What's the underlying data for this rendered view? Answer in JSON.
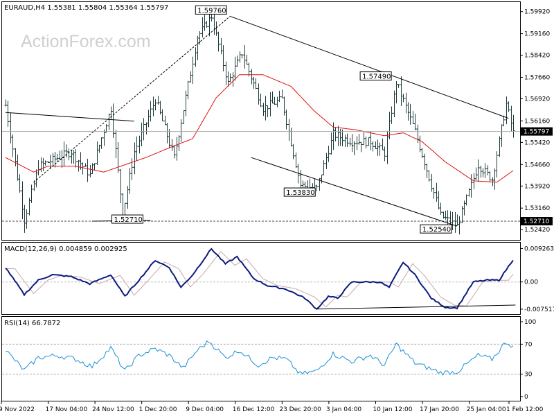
{
  "chart_data": {
    "type": "line",
    "symbol": "EURAUD",
    "timeframe": "H4",
    "ohlc": {
      "open": "1.55381",
      "high": "1.55804",
      "low": "1.55364",
      "close": "1.55797"
    },
    "x_ticks": [
      "9 Nov 2022",
      "17 Nov 04:00",
      "24 Nov 12:00",
      "1 Dec 20:00",
      "9 Dec 04:00",
      "16 Dec 12:00",
      "23 Dec 20:00",
      "3 Jan 04:00",
      "10 Jan 12:00",
      "17 Jan 20:00",
      "25 Jan 04:00",
      "1 Feb 12:00"
    ],
    "price_ticks": [
      "1.59920",
      "1.59160",
      "1.58420",
      "1.57660",
      "1.56920",
      "1.56160",
      "1.55420",
      "1.54660",
      "1.53920",
      "1.53160",
      "1.52420"
    ],
    "ylim": [
      1.5221,
      1.6008
    ],
    "current_price": "1.55797",
    "support_level": "1.52710",
    "price_labels": [
      "1.59760",
      "1.57490",
      "1.53830",
      "1.52540",
      "1.52710"
    ],
    "pivots": [
      {
        "i": 0,
        "v": 1.567
      },
      {
        "i": 8,
        "v": 1.5275
      },
      {
        "i": 14,
        "v": 1.546
      },
      {
        "i": 28,
        "v": 1.551
      },
      {
        "i": 36,
        "v": 1.543
      },
      {
        "i": 45,
        "v": 1.566
      },
      {
        "i": 50,
        "v": 1.5295
      },
      {
        "i": 55,
        "v": 1.551
      },
      {
        "i": 64,
        "v": 1.569
      },
      {
        "i": 72,
        "v": 1.549
      },
      {
        "i": 82,
        "v": 1.5905
      },
      {
        "i": 88,
        "v": 1.5976
      },
      {
        "i": 95,
        "v": 1.5745
      },
      {
        "i": 101,
        "v": 1.585
      },
      {
        "i": 110,
        "v": 1.566
      },
      {
        "i": 118,
        "v": 1.569
      },
      {
        "i": 126,
        "v": 1.5395
      },
      {
        "i": 133,
        "v": 1.5383
      },
      {
        "i": 140,
        "v": 1.557
      },
      {
        "i": 148,
        "v": 1.5545
      },
      {
        "i": 156,
        "v": 1.5545
      },
      {
        "i": 162,
        "v": 1.5505
      },
      {
        "i": 167,
        "v": 1.5749
      },
      {
        "i": 175,
        "v": 1.558
      },
      {
        "i": 186,
        "v": 1.529
      },
      {
        "i": 193,
        "v": 1.5254
      },
      {
        "i": 202,
        "v": 1.5465
      },
      {
        "i": 208,
        "v": 1.5415
      },
      {
        "i": 214,
        "v": 1.5675
      },
      {
        "i": 217,
        "v": 1.5575
      }
    ],
    "ma_points": [
      {
        "i": 0,
        "v": 1.549
      },
      {
        "i": 12,
        "v": 1.544
      },
      {
        "i": 18,
        "v": 1.546
      },
      {
        "i": 30,
        "v": 1.546
      },
      {
        "i": 42,
        "v": 1.544
      },
      {
        "i": 60,
        "v": 1.549
      },
      {
        "i": 72,
        "v": 1.553
      },
      {
        "i": 80,
        "v": 1.5555
      },
      {
        "i": 90,
        "v": 1.5695
      },
      {
        "i": 100,
        "v": 1.5775
      },
      {
        "i": 110,
        "v": 1.5775
      },
      {
        "i": 122,
        "v": 1.5735
      },
      {
        "i": 132,
        "v": 1.565
      },
      {
        "i": 140,
        "v": 1.5595
      },
      {
        "i": 150,
        "v": 1.5585
      },
      {
        "i": 162,
        "v": 1.5565
      },
      {
        "i": 170,
        "v": 1.5575
      },
      {
        "i": 178,
        "v": 1.5545
      },
      {
        "i": 188,
        "v": 1.5475
      },
      {
        "i": 200,
        "v": 1.541
      },
      {
        "i": 210,
        "v": 1.5405
      },
      {
        "i": 217,
        "v": 1.5445
      }
    ],
    "trendlines": [
      {
        "a": {
          "i": 0,
          "v": 1.5645
        },
        "b": {
          "i": 55,
          "v": 1.5615
        }
      },
      {
        "a": {
          "i": 12,
          "v": 1.5405
        },
        "b": {
          "i": 96,
          "v": 1.5976
        }
      },
      {
        "a": {
          "i": 96,
          "v": 1.5976
        },
        "b": {
          "i": 215,
          "v": 1.5625
        }
      },
      {
        "a": {
          "i": 105,
          "v": 1.549
        },
        "b": {
          "i": 193,
          "v": 1.5254
        }
      },
      {
        "a": {
          "i": 37,
          "v": 1.5271
        },
        "b": {
          "i": 62,
          "v": 1.5274
        }
      }
    ],
    "macd": {
      "label": "MACD(12,26,9) 0.004859 0.002925",
      "ticks": [
        "0.009263",
        "0.00",
        "-0.007517"
      ],
      "ylim": [
        -0.0085,
        0.0105
      ],
      "main": [
        {
          "i": 0,
          "v": 0.004
        },
        {
          "i": 8,
          "v": -0.0035
        },
        {
          "i": 14,
          "v": 0.0005
        },
        {
          "i": 20,
          "v": 0.002
        },
        {
          "i": 28,
          "v": 0.0015
        },
        {
          "i": 36,
          "v": -0.0005
        },
        {
          "i": 45,
          "v": 0.002
        },
        {
          "i": 51,
          "v": -0.004
        },
        {
          "i": 57,
          "v": 0.0005
        },
        {
          "i": 64,
          "v": 0.006
        },
        {
          "i": 70,
          "v": 0.004
        },
        {
          "i": 75,
          "v": -0.0015
        },
        {
          "i": 80,
          "v": 0.002
        },
        {
          "i": 88,
          "v": 0.0092
        },
        {
          "i": 94,
          "v": 0.005
        },
        {
          "i": 99,
          "v": 0.007
        },
        {
          "i": 106,
          "v": 0.001
        },
        {
          "i": 112,
          "v": -0.001
        },
        {
          "i": 120,
          "v": -0.002
        },
        {
          "i": 128,
          "v": -0.0045
        },
        {
          "i": 133,
          "v": -0.0075
        },
        {
          "i": 138,
          "v": -0.004
        },
        {
          "i": 142,
          "v": -0.0045
        },
        {
          "i": 148,
          "v": 0.0
        },
        {
          "i": 160,
          "v": 0.0
        },
        {
          "i": 164,
          "v": -0.0015
        },
        {
          "i": 170,
          "v": 0.0055
        },
        {
          "i": 175,
          "v": 0.002
        },
        {
          "i": 182,
          "v": -0.0045
        },
        {
          "i": 188,
          "v": -0.007
        },
        {
          "i": 193,
          "v": -0.0072
        },
        {
          "i": 200,
          "v": 0.0
        },
        {
          "i": 206,
          "v": 0.0005
        },
        {
          "i": 211,
          "v": 0.0005
        },
        {
          "i": 217,
          "v": 0.0062
        }
      ],
      "signal_lag": 4,
      "divergence_line": {
        "a": {
          "i": 133,
          "v": -0.0075
        },
        "b": {
          "i": 218,
          "v": -0.0064
        }
      }
    },
    "rsi": {
      "label": "RSI(14) 66.7872",
      "ticks": [
        "100",
        "70",
        "30",
        "0"
      ],
      "ylim": [
        0,
        100
      ],
      "levels": [
        70,
        30
      ],
      "pivots": [
        {
          "i": 0,
          "v": 62
        },
        {
          "i": 8,
          "v": 35
        },
        {
          "i": 14,
          "v": 52
        },
        {
          "i": 22,
          "v": 55
        },
        {
          "i": 30,
          "v": 50
        },
        {
          "i": 37,
          "v": 40
        },
        {
          "i": 45,
          "v": 65
        },
        {
          "i": 51,
          "v": 34
        },
        {
          "i": 57,
          "v": 55
        },
        {
          "i": 64,
          "v": 64
        },
        {
          "i": 70,
          "v": 55
        },
        {
          "i": 76,
          "v": 38
        },
        {
          "i": 82,
          "v": 62
        },
        {
          "i": 87,
          "v": 74
        },
        {
          "i": 94,
          "v": 52
        },
        {
          "i": 100,
          "v": 62
        },
        {
          "i": 108,
          "v": 42
        },
        {
          "i": 114,
          "v": 52
        },
        {
          "i": 120,
          "v": 50
        },
        {
          "i": 126,
          "v": 30
        },
        {
          "i": 133,
          "v": 34
        },
        {
          "i": 140,
          "v": 57
        },
        {
          "i": 148,
          "v": 47
        },
        {
          "i": 156,
          "v": 55
        },
        {
          "i": 162,
          "v": 42
        },
        {
          "i": 167,
          "v": 70
        },
        {
          "i": 175,
          "v": 45
        },
        {
          "i": 186,
          "v": 32
        },
        {
          "i": 193,
          "v": 33
        },
        {
          "i": 202,
          "v": 55
        },
        {
          "i": 208,
          "v": 50
        },
        {
          "i": 214,
          "v": 73
        },
        {
          "i": 217,
          "v": 67
        }
      ]
    },
    "bar_count": 218,
    "watermark": "ActionForex.com",
    "grid": false
  }
}
